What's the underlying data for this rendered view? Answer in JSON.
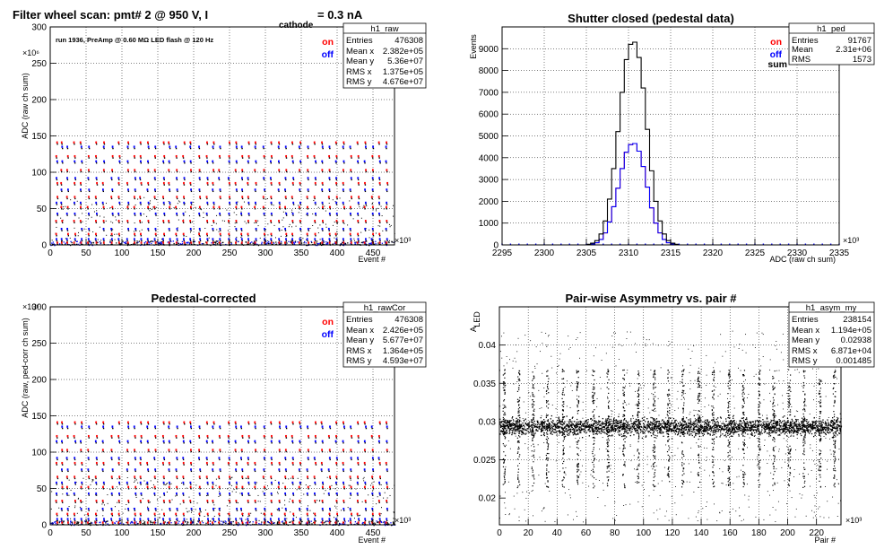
{
  "colors": {
    "on": "#ff0000",
    "off": "#0000ff",
    "sum": "#000000",
    "frame": "#000000",
    "grid": "#000000"
  },
  "chart_data": [
    {
      "id": "p1",
      "type": "scatter",
      "title": "Filter wheel scan: pmt#   2 @   950 V, I",
      "title_sub": "cathode",
      "title_tail": "= 0.3 nA",
      "annotation": "run 1936, PreAmp @ 0.60 MΩ  LED flash @  120 Hz",
      "xlabel": "Event #",
      "ylabel": "ADC (raw ch sum)",
      "x_exp": "×10³",
      "y_exp": "×10⁶",
      "xlim": [
        0,
        480
      ],
      "ylim": [
        0,
        300
      ],
      "xticks": [
        "0",
        "50",
        "100",
        "150",
        "200",
        "250",
        "300",
        "350",
        "400",
        "450"
      ],
      "yticks": [
        "0",
        "50",
        "100",
        "150",
        "200",
        "250",
        "300"
      ],
      "legend": [
        {
          "label": "on",
          "color": "#ff0000"
        },
        {
          "label": "off",
          "color": "#0000ff"
        }
      ],
      "stats": {
        "name": "h1_raw",
        "rows": [
          [
            "Entries",
            "476308"
          ],
          [
            "Mean x",
            "2.382e+05"
          ],
          [
            "Mean y",
            "5.36e+07"
          ],
          [
            "RMS x",
            "1.375e+05"
          ],
          [
            "RMS y",
            "4.676e+07"
          ]
        ]
      },
      "band_levels": [
        3,
        8,
        15,
        22,
        33,
        43,
        52,
        58,
        66,
        76,
        85,
        92,
        103,
        115,
        122,
        135,
        141
      ],
      "step_x": [
        8,
        15,
        23,
        33,
        42,
        52,
        63,
        73,
        85,
        95,
        107,
        117,
        125,
        135,
        145,
        157,
        165,
        175,
        185,
        195,
        207,
        218,
        226,
        235,
        248,
        258,
        266,
        275,
        285,
        297,
        307,
        318,
        327,
        337,
        347,
        358,
        368,
        378,
        388,
        398,
        408,
        418,
        428,
        438,
        448,
        458,
        468
      ],
      "grid": true
    },
    {
      "id": "p2",
      "type": "histogram",
      "title": "Shutter closed (pedestal data)",
      "xlabel": "ADC (raw ch sum)",
      "ylabel": "Events",
      "x_exp": "×10³",
      "xlim": [
        2295,
        2335
      ],
      "ylim": [
        0,
        10000
      ],
      "xticks": [
        "2295",
        "2300",
        "2305",
        "2310",
        "2315",
        "2320",
        "2325",
        "2330",
        "2335"
      ],
      "yticks": [
        "0",
        "1000",
        "2000",
        "3000",
        "4000",
        "5000",
        "6000",
        "7000",
        "8000",
        "9000"
      ],
      "legend": [
        {
          "label": "on",
          "color": "#ff0000"
        },
        {
          "label": "off",
          "color": "#0000ff"
        },
        {
          "label": "sum",
          "color": "#000000"
        }
      ],
      "stats": {
        "name": "h1_ped",
        "rows": [
          [
            "Entries",
            "91767"
          ],
          [
            "Mean",
            "2.31e+06"
          ],
          [
            "RMS",
            "1573"
          ]
        ]
      },
      "bin_width": 0.5,
      "bin_start": 2305,
      "sum_values": [
        30,
        80,
        200,
        500,
        1100,
        2100,
        3500,
        5200,
        7000,
        8500,
        9200,
        9300,
        8600,
        7200,
        5300,
        3400,
        2000,
        1100,
        500,
        200,
        80,
        30
      ],
      "on_values": [
        15,
        40,
        100,
        250,
        550,
        1050,
        1750,
        2600,
        3500,
        4250,
        4600,
        4650,
        4300,
        3600,
        2650,
        1700,
        1000,
        550,
        250,
        100,
        40,
        15
      ],
      "off_values": [
        15,
        40,
        100,
        250,
        550,
        1050,
        1750,
        2600,
        3500,
        4250,
        4600,
        4650,
        4300,
        3600,
        2650,
        1700,
        1000,
        550,
        250,
        100,
        40,
        15
      ],
      "grid": true
    },
    {
      "id": "p3",
      "type": "scatter",
      "title": "Pedestal-corrected",
      "xlabel": "Event #",
      "ylabel": "ADC (raw, ped-corr ch sum)",
      "x_exp": "×10³",
      "y_exp": "×10⁶",
      "xlim": [
        0,
        480
      ],
      "ylim": [
        0,
        300
      ],
      "xticks": [
        "0",
        "50",
        "100",
        "150",
        "200",
        "250",
        "300",
        "350",
        "400",
        "450"
      ],
      "yticks": [
        "0",
        "50",
        "100",
        "150",
        "200",
        "250",
        "300"
      ],
      "legend": [
        {
          "label": "on",
          "color": "#ff0000"
        },
        {
          "label": "off",
          "color": "#0000ff"
        }
      ],
      "stats": {
        "name": "h1_rawCor",
        "rows": [
          [
            "Entries",
            "476308"
          ],
          [
            "Mean x",
            "2.426e+05"
          ],
          [
            "Mean y",
            "5.677e+07"
          ],
          [
            "RMS x",
            "1.364e+05"
          ],
          [
            "RMS y",
            "4.593e+07"
          ]
        ]
      },
      "band_levels": [
        3,
        8,
        15,
        22,
        33,
        43,
        52,
        58,
        66,
        76,
        85,
        92,
        103,
        115,
        122,
        135,
        141
      ],
      "step_x": [
        8,
        15,
        23,
        33,
        42,
        52,
        63,
        73,
        85,
        95,
        107,
        117,
        125,
        135,
        145,
        157,
        165,
        175,
        185,
        195,
        207,
        218,
        226,
        235,
        248,
        258,
        266,
        275,
        285,
        297,
        307,
        318,
        327,
        337,
        347,
        358,
        368,
        378,
        388,
        398,
        408,
        418,
        428,
        438,
        448,
        458,
        468
      ],
      "grid": true
    },
    {
      "id": "p4",
      "type": "scatter",
      "title": "Pair-wise Asymmetry vs. pair #",
      "xlabel": "Pair #",
      "ylabel": "A",
      "ylabel_sub": "LED",
      "x_exp": "×10³",
      "xlim": [
        0,
        237
      ],
      "ylim": [
        0.0165,
        0.045
      ],
      "xticks": [
        "0",
        "20",
        "40",
        "60",
        "80",
        "100",
        "120",
        "140",
        "160",
        "180",
        "200",
        "220"
      ],
      "xtick_values": [
        0,
        20,
        40,
        60,
        80,
        100,
        120,
        140,
        160,
        180,
        200,
        220
      ],
      "yticks": [
        "0.02",
        "0.025",
        "0.03",
        "0.035",
        "0.04"
      ],
      "ytick_values": [
        0.02,
        0.025,
        0.03,
        0.035,
        0.04
      ],
      "stats": {
        "name": "h1_asym_my",
        "rows": [
          [
            "Entries",
            "238154"
          ],
          [
            "Mean x",
            "1.194e+05"
          ],
          [
            "Mean y",
            "0.02938"
          ],
          [
            "RMS x",
            "6.871e+04"
          ],
          [
            "RMS y",
            "0.001485"
          ]
        ]
      },
      "band_center": 0.02938,
      "spike_x": [
        3,
        13,
        23,
        33,
        44,
        54,
        65,
        75,
        86,
        96,
        107,
        117,
        127,
        138,
        148,
        159,
        169,
        180,
        190,
        201,
        211,
        222,
        232
      ],
      "grid": true
    }
  ]
}
